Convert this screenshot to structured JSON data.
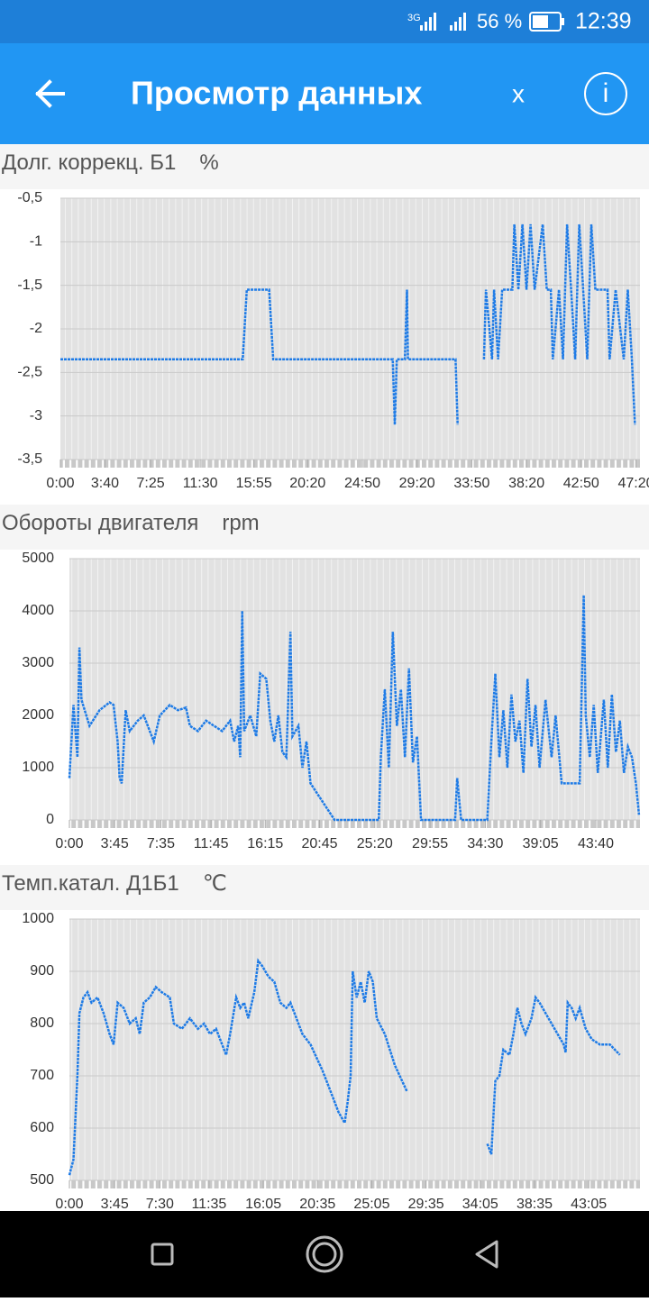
{
  "status_bar": {
    "network": "3G",
    "battery": "56 %",
    "time": "12:39"
  },
  "header": {
    "title": "Просмотр данных",
    "close": "x",
    "info": "i"
  },
  "chart_data": [
    {
      "type": "line",
      "title": "Долг. коррекц. Б1",
      "unit": "%",
      "xlim": [
        0,
        2860
      ],
      "xticks": [
        {
          "value": 0,
          "label": "0:00"
        },
        {
          "value": 220,
          "label": "3:40"
        },
        {
          "value": 445,
          "label": "7:25"
        },
        {
          "value": 690,
          "label": "11:30"
        },
        {
          "value": 955,
          "label": "15:55"
        },
        {
          "value": 1220,
          "label": "20:20"
        },
        {
          "value": 1490,
          "label": "24:50"
        },
        {
          "value": 1760,
          "label": "29:20"
        },
        {
          "value": 2030,
          "label": "33:50"
        },
        {
          "value": 2300,
          "label": "38:20"
        },
        {
          "value": 2570,
          "label": "42:50"
        },
        {
          "value": 2840,
          "label": "47:20"
        }
      ],
      "ylim": [
        -3.5,
        -0.5
      ],
      "yticks": [
        {
          "value": -3.5,
          "label": "-3,5"
        },
        -3,
        {
          "value": -2.5,
          "label": "-2,5"
        },
        -2,
        {
          "value": -1.5,
          "label": "-1,5"
        },
        -1,
        {
          "value": -0.5,
          "label": "-0,5"
        }
      ],
      "grid": true,
      "x": [
        0,
        900,
        920,
        1030,
        1050,
        1640,
        1650,
        1660,
        1700,
        1710,
        1715,
        1950,
        1960,
        2000,
        2090,
        2100,
        2130,
        2140,
        2160,
        2180,
        2230,
        2240,
        2260,
        2280,
        2300,
        2320,
        2340,
        2380,
        2400,
        2420,
        2430,
        2460,
        2480,
        2500,
        2520,
        2540,
        2560,
        2580,
        2600,
        2620,
        2640,
        2700,
        2710,
        2740,
        2780,
        2800,
        2820,
        2835
      ],
      "series": [
        {
          "color": "#1e7be6",
          "values": [
            -2.35,
            -2.35,
            -1.55,
            -1.55,
            -2.35,
            -2.35,
            -3.1,
            -2.35,
            -2.35,
            -1.55,
            -2.35,
            -2.35,
            -3.1,
            null,
            -2.35,
            -1.55,
            -2.35,
            -1.55,
            -2.35,
            -1.55,
            -1.55,
            -0.8,
            -1.55,
            -0.8,
            -1.55,
            -0.8,
            -1.55,
            -0.8,
            -1.55,
            -1.55,
            -2.35,
            -1.55,
            -2.35,
            -0.8,
            -1.55,
            -2.35,
            -0.8,
            -1.55,
            -2.35,
            -0.8,
            -1.55,
            -1.55,
            -2.35,
            -1.55,
            -2.35,
            -1.55,
            -2.35,
            -3.1
          ]
        }
      ]
    },
    {
      "type": "line",
      "title": "Обороты двигателя",
      "unit": "rpm",
      "xlim": [
        0,
        2840
      ],
      "xticks": [
        {
          "value": 0,
          "label": "0:00"
        },
        {
          "value": 225,
          "label": "3:45"
        },
        {
          "value": 455,
          "label": "7:35"
        },
        {
          "value": 705,
          "label": "11:45"
        },
        {
          "value": 975,
          "label": "16:15"
        },
        {
          "value": 1245,
          "label": "20:45"
        },
        {
          "value": 1520,
          "label": "25:20"
        },
        {
          "value": 1795,
          "label": "29:55"
        },
        {
          "value": 2070,
          "label": "34:30"
        },
        {
          "value": 2345,
          "label": "39:05"
        },
        {
          "value": 2620,
          "label": "43:40"
        }
      ],
      "ylim": [
        0,
        5000
      ],
      "yticks": [
        0,
        1000,
        2000,
        3000,
        4000,
        5000
      ],
      "grid": true,
      "x": [
        0,
        20,
        40,
        50,
        60,
        100,
        150,
        200,
        220,
        240,
        250,
        260,
        270,
        280,
        300,
        340,
        370,
        400,
        420,
        450,
        500,
        540,
        580,
        600,
        640,
        680,
        720,
        760,
        800,
        820,
        840,
        850,
        860,
        870,
        900,
        930,
        950,
        980,
        1000,
        1020,
        1040,
        1060,
        1080,
        1100,
        1110,
        1140,
        1160,
        1180,
        1200,
        1320,
        1540,
        1550,
        1570,
        1590,
        1610,
        1630,
        1650,
        1670,
        1690,
        1710,
        1730,
        1750,
        1920,
        1930,
        1950,
        2080,
        2100,
        2120,
        2140,
        2160,
        2180,
        2200,
        2220,
        2240,
        2260,
        2280,
        2300,
        2320,
        2340,
        2370,
        2400,
        2420,
        2450,
        2540,
        2560,
        2570,
        2590,
        2610,
        2630,
        2660,
        2680,
        2700,
        2720,
        2740,
        2760,
        2780,
        2800,
        2820,
        2835
      ],
      "series": [
        {
          "color": "#1e7be6",
          "values": [
            800,
            2200,
            1200,
            3300,
            2300,
            1800,
            2100,
            2250,
            2200,
            1500,
            800,
            700,
            1400,
            2100,
            1700,
            1900,
            2000,
            1700,
            1500,
            2000,
            2200,
            2100,
            2150,
            1800,
            1700,
            1900,
            1800,
            1700,
            1900,
            1500,
            1800,
            1200,
            4000,
            1700,
            2000,
            1600,
            2800,
            2700,
            1900,
            1500,
            2000,
            1300,
            1200,
            3600,
            1600,
            1800,
            1000,
            1500,
            700,
            0,
            0,
            1200,
            2500,
            1000,
            3600,
            1800,
            2500,
            1200,
            2900,
            1100,
            1600,
            0,
            0,
            800,
            0,
            0,
            1500,
            2800,
            1200,
            2100,
            1000,
            2400,
            1500,
            1900,
            900,
            2700,
            1400,
            2200,
            1000,
            2300,
            1200,
            2000,
            700,
            700,
            4300,
            2000,
            1200,
            2200,
            900,
            2300,
            1000,
            2400,
            1300,
            1900,
            900,
            1400,
            1200,
            700,
            100
          ]
        }
      ]
    },
    {
      "type": "line",
      "title": "Темп.катал. Д1Б1",
      "unit": "℃",
      "xlim": [
        0,
        2840
      ],
      "xticks": [
        {
          "value": 0,
          "label": "0:00"
        },
        {
          "value": 225,
          "label": "3:45"
        },
        {
          "value": 450,
          "label": "7:30"
        },
        {
          "value": 695,
          "label": "11:35"
        },
        {
          "value": 965,
          "label": "16:05"
        },
        {
          "value": 1235,
          "label": "20:35"
        },
        {
          "value": 1505,
          "label": "25:05"
        },
        {
          "value": 1775,
          "label": "29:35"
        },
        {
          "value": 2045,
          "label": "34:05"
        },
        {
          "value": 2315,
          "label": "38:35"
        },
        {
          "value": 2585,
          "label": "43:05"
        }
      ],
      "ylim": [
        500,
        1000
      ],
      "yticks": [
        500,
        600,
        700,
        800,
        900,
        1000
      ],
      "grid": true,
      "x": [
        0,
        20,
        40,
        50,
        70,
        90,
        110,
        140,
        170,
        200,
        220,
        240,
        270,
        300,
        330,
        350,
        370,
        400,
        430,
        460,
        500,
        520,
        560,
        600,
        640,
        670,
        700,
        730,
        760,
        780,
        800,
        830,
        850,
        870,
        890,
        920,
        940,
        960,
        990,
        1020,
        1050,
        1080,
        1100,
        1130,
        1160,
        1200,
        1260,
        1300,
        1340,
        1370,
        1385,
        1400,
        1410,
        1430,
        1450,
        1470,
        1490,
        1510,
        1530,
        1570,
        1620,
        1680,
        1900,
        2080,
        2100,
        2120,
        2140,
        2160,
        2190,
        2210,
        2230,
        2250,
        2270,
        2300,
        2320,
        2340,
        2370,
        2400,
        2430,
        2460,
        2470,
        2480,
        2500,
        2520,
        2540,
        2570,
        2600,
        2640,
        2690,
        2740
      ],
      "series": [
        {
          "color": "#1e7be6",
          "values": [
            510,
            540,
            700,
            820,
            850,
            860,
            840,
            850,
            820,
            780,
            760,
            840,
            830,
            800,
            810,
            780,
            840,
            850,
            870,
            860,
            850,
            800,
            790,
            810,
            790,
            800,
            780,
            790,
            760,
            740,
            780,
            850,
            830,
            840,
            810,
            860,
            920,
            910,
            890,
            880,
            840,
            830,
            840,
            810,
            780,
            760,
            710,
            670,
            630,
            610,
            650,
            700,
            900,
            850,
            880,
            840,
            900,
            880,
            810,
            780,
            720,
            670,
            null,
            570,
            550,
            690,
            700,
            750,
            740,
            780,
            830,
            800,
            780,
            810,
            850,
            840,
            820,
            800,
            780,
            760,
            745,
            840,
            830,
            810,
            830,
            790,
            770,
            760,
            760,
            740
          ]
        }
      ]
    }
  ]
}
